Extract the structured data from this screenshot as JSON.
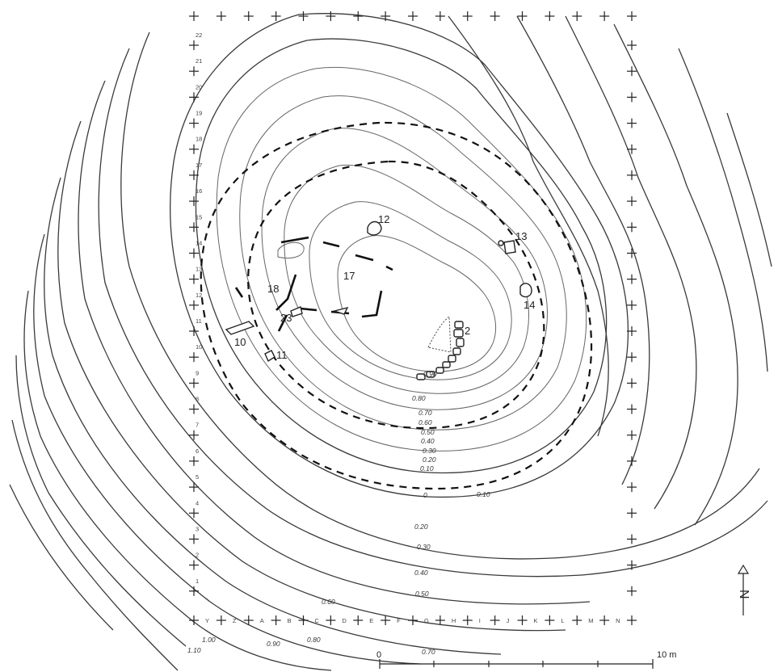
{
  "map": {
    "north_label": "N",
    "scale": {
      "start_label": "0",
      "end_label": "10 m"
    },
    "grid_rows": [
      "22",
      "21",
      "20",
      "19",
      "18",
      "17",
      "16",
      "15",
      "14",
      "13",
      "12",
      "11",
      "10",
      "9",
      "8",
      "7",
      "6",
      "5",
      "4",
      "3",
      "2",
      "1"
    ],
    "grid_cols": [
      "Y",
      "Z",
      "A",
      "B",
      "C",
      "D",
      "E",
      "F",
      "G",
      "H",
      "I",
      "J",
      "K",
      "L",
      "M",
      "N"
    ],
    "contour_labels": [
      "0.90",
      "0.80",
      "0.70",
      "0.60",
      "0.50",
      "0.40",
      "0.30",
      "0.20",
      "0.10",
      "0",
      "0.10",
      "0.20",
      "0.30",
      "0.40",
      "0.50",
      "0.60",
      "0.70",
      "0.80",
      "0.90",
      "1.00",
      "1.10"
    ],
    "features": [
      {
        "id": "f2",
        "label": "2"
      },
      {
        "id": "f10",
        "label": "10"
      },
      {
        "id": "f11",
        "label": "11"
      },
      {
        "id": "f12",
        "label": "12"
      },
      {
        "id": "f13",
        "label": "13"
      },
      {
        "id": "f14",
        "label": "14"
      },
      {
        "id": "f17",
        "label": "17"
      },
      {
        "id": "f18",
        "label": "18"
      },
      {
        "id": "f23",
        "label": "23"
      }
    ]
  }
}
